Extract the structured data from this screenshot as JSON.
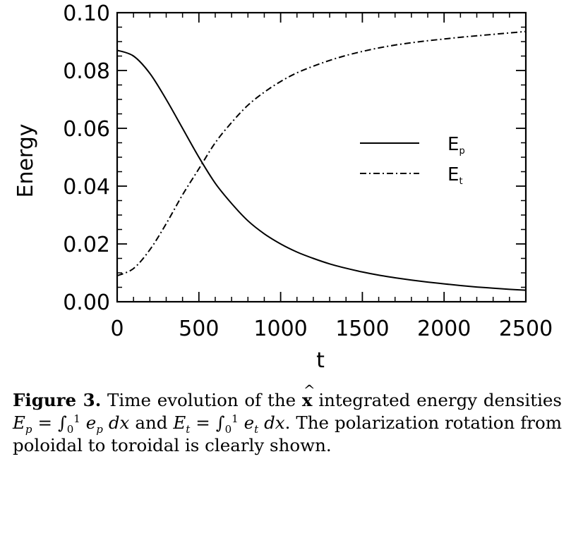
{
  "chart_data": {
    "type": "line",
    "xlabel": "t",
    "ylabel": "Energy",
    "xlim": [
      0,
      2500
    ],
    "ylim": [
      0,
      0.1
    ],
    "xticks": [
      0,
      500,
      1000,
      1500,
      2000,
      2500
    ],
    "xtick_labels": [
      "0",
      "500",
      "1000",
      "1500",
      "2000",
      "2500"
    ],
    "yticks": [
      0,
      0.02,
      0.04,
      0.06,
      0.08,
      0.1
    ],
    "ytick_labels": [
      "0.00",
      "0.02",
      "0.04",
      "0.06",
      "0.08",
      "0.10"
    ],
    "legend_position": "center-right",
    "grid": false,
    "x": [
      0,
      100,
      200,
      300,
      400,
      500,
      600,
      700,
      800,
      900,
      1000,
      1100,
      1200,
      1300,
      1400,
      1500,
      1600,
      1700,
      1800,
      1900,
      2000,
      2100,
      2200,
      2300,
      2400,
      2500
    ],
    "series": [
      {
        "name": "E_p",
        "legend_main": "E",
        "legend_sub": "p",
        "style": "solid",
        "values": [
          0.087,
          0.085,
          0.079,
          0.07,
          0.06,
          0.05,
          0.041,
          0.034,
          0.028,
          0.0235,
          0.02,
          0.0172,
          0.015,
          0.0131,
          0.0116,
          0.0103,
          0.0092,
          0.0083,
          0.0075,
          0.0068,
          0.0062,
          0.0056,
          0.0051,
          0.0047,
          0.0043,
          0.004
        ]
      },
      {
        "name": "E_t",
        "legend_main": "E",
        "legend_sub": "t",
        "style": "dashdot",
        "values": [
          0.009,
          0.0115,
          0.018,
          0.027,
          0.037,
          0.046,
          0.055,
          0.062,
          0.068,
          0.0725,
          0.0762,
          0.0792,
          0.0815,
          0.0835,
          0.0852,
          0.0866,
          0.0878,
          0.0888,
          0.0896,
          0.0903,
          0.0909,
          0.0915,
          0.092,
          0.0925,
          0.093,
          0.0935
        ]
      }
    ]
  },
  "caption": {
    "label": "Figure 3.",
    "text_1": "Time evolution of the",
    "hat_x": "x",
    "text_2": "integrated energy densities",
    "eq_p_lhs": "E",
    "eq_p_lhs_sub": "p",
    "eq_equals": " = ∫",
    "int_lower": "0",
    "int_upper": "1",
    "eq_p_integrand": "e",
    "eq_p_integrand_sub": "p",
    "eq_dx": "dx",
    "text_and": "and",
    "eq_t_lhs": "E",
    "eq_t_lhs_sub": "t",
    "eq_t_integrand": "e",
    "eq_t_integrand_sub": "t",
    "text_3": ". The polarization rotation from poloidal to toroidal is clearly shown."
  }
}
